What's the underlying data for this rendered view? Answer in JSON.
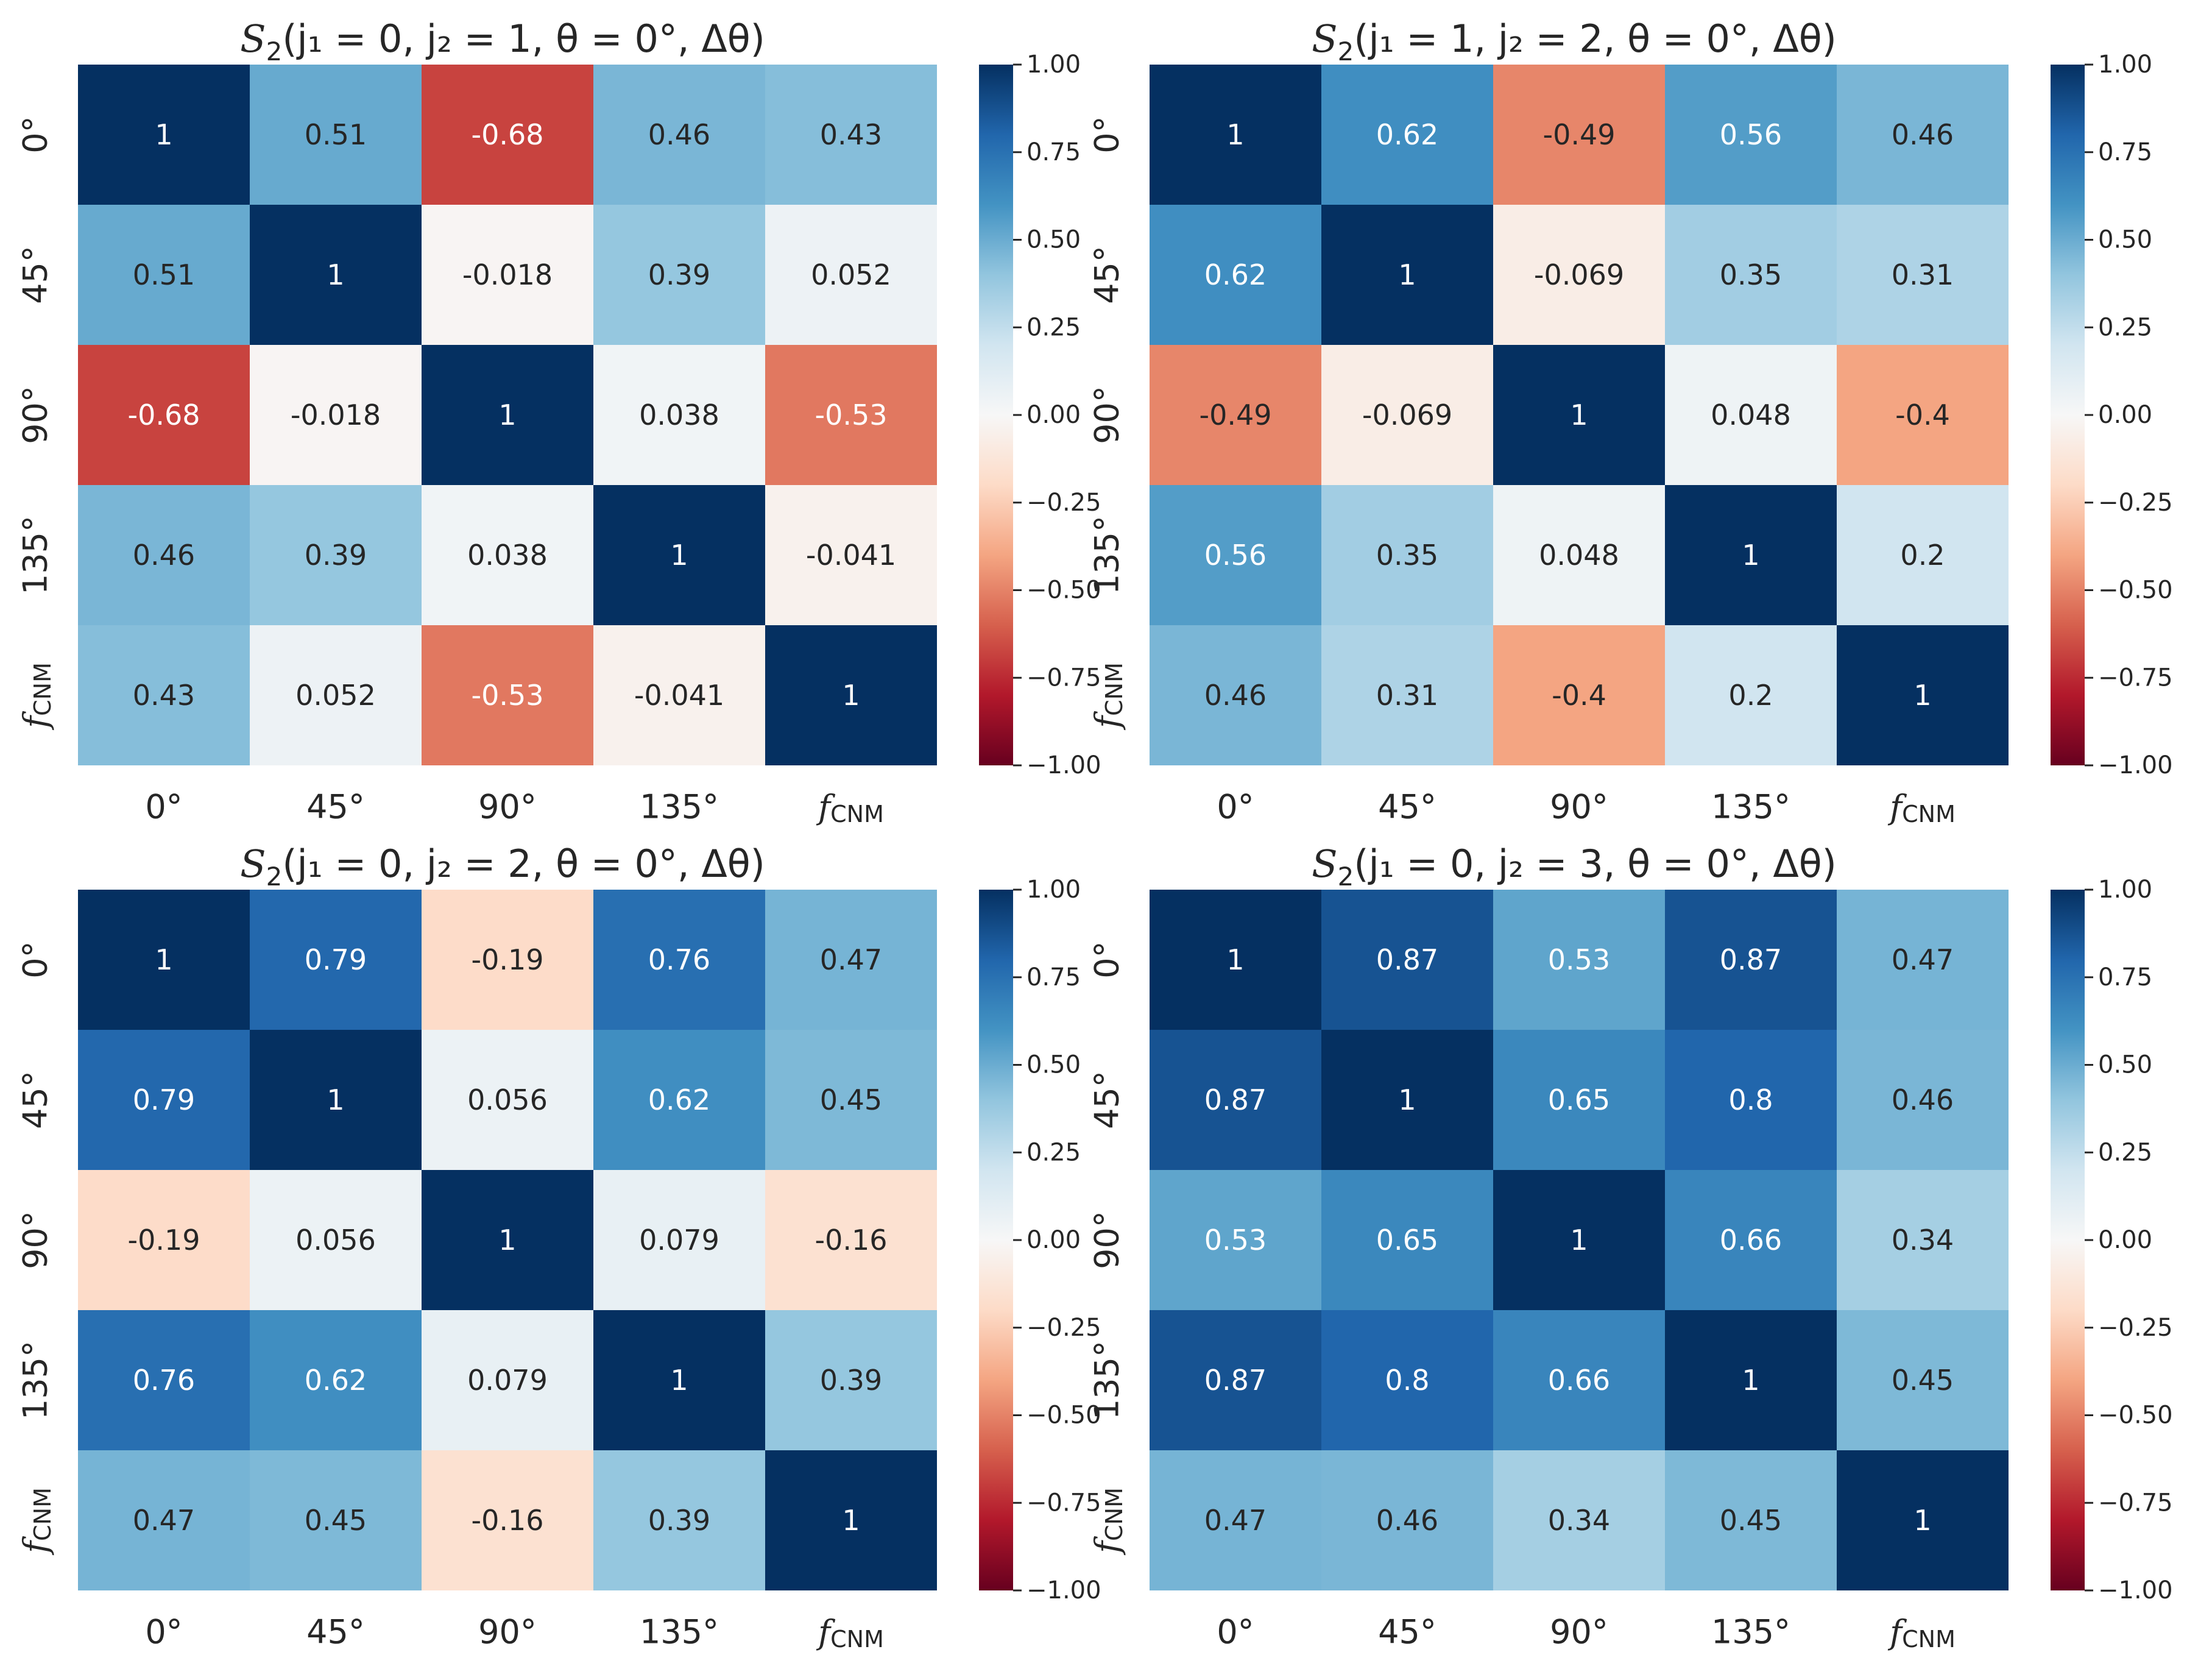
{
  "chart_data": [
    {
      "type": "heatmap",
      "title": {
        "prefix": "S",
        "sub": "2",
        "body": "(j₁ = 0, j₂ = 1, θ = 0°, Δθ)"
      },
      "row_labels": [
        "0°",
        "45°",
        "90°",
        "135°",
        "f_CNM"
      ],
      "col_labels": [
        "0°",
        "45°",
        "90°",
        "135°",
        "f_CNM"
      ],
      "values": [
        [
          1,
          0.51,
          -0.68,
          0.46,
          0.43
        ],
        [
          0.51,
          1,
          -0.018,
          0.39,
          0.052
        ],
        [
          -0.68,
          -0.018,
          1,
          0.038,
          -0.53
        ],
        [
          0.46,
          0.39,
          0.038,
          1,
          -0.041
        ],
        [
          0.43,
          0.052,
          -0.53,
          -0.041,
          1
        ]
      ],
      "cell_text": [
        [
          "1",
          "0.51",
          "-0.68",
          "0.46",
          "0.43"
        ],
        [
          "0.51",
          "1",
          "-0.018",
          "0.39",
          "0.052"
        ],
        [
          "-0.68",
          "-0.018",
          "1",
          "0.038",
          "-0.53"
        ],
        [
          "0.46",
          "0.39",
          "0.038",
          "1",
          "-0.041"
        ],
        [
          "0.43",
          "0.052",
          "-0.53",
          "-0.041",
          "1"
        ]
      ],
      "colorbar": {
        "range": [
          -1,
          1
        ],
        "ticks": [
          "1.00",
          "0.75",
          "0.50",
          "0.25",
          "0.00",
          "−0.25",
          "−0.50",
          "−0.75",
          "−1.00"
        ],
        "colormap": "RdBu"
      }
    },
    {
      "type": "heatmap",
      "title": {
        "prefix": "S",
        "sub": "2",
        "body": "(j₁ = 1, j₂ = 2, θ = 0°, Δθ)"
      },
      "row_labels": [
        "0°",
        "45°",
        "90°",
        "135°",
        "f_CNM"
      ],
      "col_labels": [
        "0°",
        "45°",
        "90°",
        "135°",
        "f_CNM"
      ],
      "values": [
        [
          1,
          0.62,
          -0.49,
          0.56,
          0.46
        ],
        [
          0.62,
          1,
          -0.069,
          0.35,
          0.31
        ],
        [
          -0.49,
          -0.069,
          1,
          0.048,
          -0.4
        ],
        [
          0.56,
          0.35,
          0.048,
          1,
          0.2
        ],
        [
          0.46,
          0.31,
          -0.4,
          0.2,
          1
        ]
      ],
      "cell_text": [
        [
          "1",
          "0.62",
          "-0.49",
          "0.56",
          "0.46"
        ],
        [
          "0.62",
          "1",
          "-0.069",
          "0.35",
          "0.31"
        ],
        [
          "-0.49",
          "-0.069",
          "1",
          "0.048",
          "-0.4"
        ],
        [
          "0.56",
          "0.35",
          "0.048",
          "1",
          "0.2"
        ],
        [
          "0.46",
          "0.31",
          "-0.4",
          "0.2",
          "1"
        ]
      ],
      "colorbar": {
        "range": [
          -1,
          1
        ],
        "ticks": [
          "1.00",
          "0.75",
          "0.50",
          "0.25",
          "0.00",
          "−0.25",
          "−0.50",
          "−0.75",
          "−1.00"
        ],
        "colormap": "RdBu"
      }
    },
    {
      "type": "heatmap",
      "title": {
        "prefix": "S",
        "sub": "2",
        "body": "(j₁ = 0, j₂ = 2, θ = 0°, Δθ)"
      },
      "row_labels": [
        "0°",
        "45°",
        "90°",
        "135°",
        "f_CNM"
      ],
      "col_labels": [
        "0°",
        "45°",
        "90°",
        "135°",
        "f_CNM"
      ],
      "values": [
        [
          1,
          0.79,
          -0.19,
          0.76,
          0.47
        ],
        [
          0.79,
          1,
          0.056,
          0.62,
          0.45
        ],
        [
          -0.19,
          0.056,
          1,
          0.079,
          -0.16
        ],
        [
          0.76,
          0.62,
          0.079,
          1,
          0.39
        ],
        [
          0.47,
          0.45,
          -0.16,
          0.39,
          1
        ]
      ],
      "cell_text": [
        [
          "1",
          "0.79",
          "-0.19",
          "0.76",
          "0.47"
        ],
        [
          "0.79",
          "1",
          "0.056",
          "0.62",
          "0.45"
        ],
        [
          "-0.19",
          "0.056",
          "1",
          "0.079",
          "-0.16"
        ],
        [
          "0.76",
          "0.62",
          "0.079",
          "1",
          "0.39"
        ],
        [
          "0.47",
          "0.45",
          "-0.16",
          "0.39",
          "1"
        ]
      ],
      "colorbar": {
        "range": [
          -1,
          1
        ],
        "ticks": [
          "1.00",
          "0.75",
          "0.50",
          "0.25",
          "0.00",
          "−0.25",
          "−0.50",
          "−0.75",
          "−1.00"
        ],
        "colormap": "RdBu"
      }
    },
    {
      "type": "heatmap",
      "title": {
        "prefix": "S",
        "sub": "2",
        "body": "(j₁ = 0, j₂ = 3, θ = 0°, Δθ)"
      },
      "row_labels": [
        "0°",
        "45°",
        "90°",
        "135°",
        "f_CNM"
      ],
      "col_labels": [
        "0°",
        "45°",
        "90°",
        "135°",
        "f_CNM"
      ],
      "values": [
        [
          1,
          0.87,
          0.53,
          0.87,
          0.47
        ],
        [
          0.87,
          1,
          0.65,
          0.8,
          0.46
        ],
        [
          0.53,
          0.65,
          1,
          0.66,
          0.34
        ],
        [
          0.87,
          0.8,
          0.66,
          1,
          0.45
        ],
        [
          0.47,
          0.46,
          0.34,
          0.45,
          1
        ]
      ],
      "cell_text": [
        [
          "1",
          "0.87",
          "0.53",
          "0.87",
          "0.47"
        ],
        [
          "0.87",
          "1",
          "0.65",
          "0.8",
          "0.46"
        ],
        [
          "0.53",
          "0.65",
          "1",
          "0.66",
          "0.34"
        ],
        [
          "0.87",
          "0.8",
          "0.66",
          "1",
          "0.45"
        ],
        [
          "0.47",
          "0.46",
          "0.34",
          "0.45",
          "1"
        ]
      ],
      "colorbar": {
        "range": [
          -1,
          1
        ],
        "ticks": [
          "1.00",
          "0.75",
          "0.50",
          "0.25",
          "0.00",
          "−0.25",
          "−0.50",
          "−0.75",
          "−1.00"
        ],
        "colormap": "RdBu"
      }
    }
  ]
}
